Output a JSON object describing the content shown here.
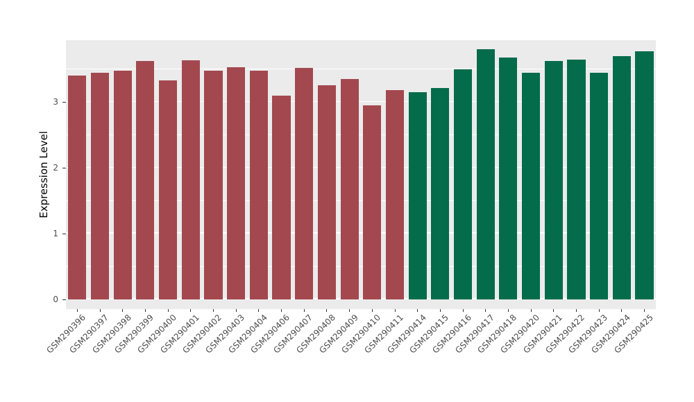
{
  "chart_data": {
    "type": "bar",
    "title": "",
    "xlabel": "",
    "ylabel": "Expression Level",
    "ylim": [
      -0.15,
      3.94
    ],
    "yticks": [
      0,
      1,
      2,
      3
    ],
    "yticks_minor": [
      0.5,
      1.5,
      2.5,
      3.5
    ],
    "grid": true,
    "legend_position": "none",
    "categories": [
      "GSM290396",
      "GSM290397",
      "GSM290398",
      "GSM290399",
      "GSM290400",
      "GSM290401",
      "GSM290402",
      "GSM290403",
      "GSM290404",
      "GSM290406",
      "GSM290407",
      "GSM290408",
      "GSM290409",
      "GSM290410",
      "GSM290411",
      "GSM290414",
      "GSM290415",
      "GSM290416",
      "GSM290417",
      "GSM290418",
      "GSM290420",
      "GSM290421",
      "GSM290422",
      "GSM290423",
      "GSM290424",
      "GSM290425"
    ],
    "values": [
      3.4,
      3.45,
      3.48,
      3.62,
      3.33,
      3.63,
      3.48,
      3.53,
      3.48,
      3.1,
      3.52,
      3.25,
      3.35,
      2.95,
      3.18,
      3.15,
      3.21,
      3.5,
      3.8,
      3.68,
      3.44,
      3.62,
      3.64,
      3.44,
      3.7,
      3.77
    ],
    "groups": [
      "red",
      "red",
      "red",
      "red",
      "red",
      "red",
      "red",
      "red",
      "red",
      "red",
      "red",
      "red",
      "red",
      "red",
      "red",
      "green",
      "green",
      "green",
      "green",
      "green",
      "green",
      "green",
      "green",
      "green",
      "green",
      "green"
    ],
    "group_colors": {
      "red": "#A3484F",
      "green": "#046C4B"
    }
  },
  "style": {
    "panel_bg": "#EBEBEB",
    "grid_color": "#FFFFFF",
    "tick_label_color": "#4D4D4D",
    "axis_title_color": "#000000",
    "figure_bg": "#FFFFFF"
  }
}
